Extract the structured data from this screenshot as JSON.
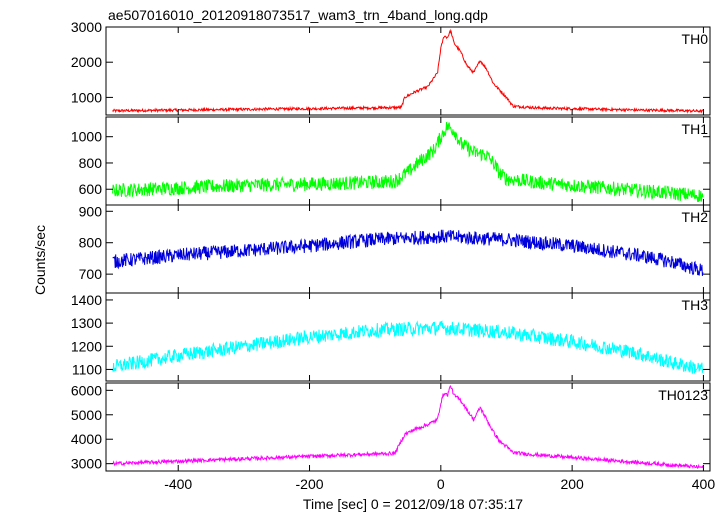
{
  "chart_data": {
    "type": "line",
    "title": "ae507016010_20120918073517_wam3_trn_4band_long.qdp",
    "xlabel": "Time [sec] 0 = 2012/09/18 07:35:17",
    "ylabel": "Counts/sec",
    "xlim": [
      -510,
      410
    ],
    "x_ticks": [
      -400,
      -200,
      0,
      200,
      400
    ],
    "grid": false,
    "panels": [
      {
        "name": "TH0",
        "color": "#ff0000",
        "ylim": [
          500,
          3000
        ],
        "y_ticks": [
          1000,
          2000,
          3000
        ],
        "x": [
          -500,
          -400,
          -300,
          -200,
          -120,
          -70,
          -60,
          -55,
          -40,
          -20,
          -5,
          0,
          5,
          10,
          15,
          20,
          30,
          40,
          50,
          60,
          70,
          80,
          90,
          100,
          110,
          150,
          200,
          250,
          300,
          350,
          400
        ],
        "values": [
          620,
          640,
          660,
          680,
          700,
          710,
          720,
          1000,
          1150,
          1300,
          1700,
          2400,
          2750,
          2700,
          2900,
          2550,
          2300,
          1900,
          1700,
          2050,
          1800,
          1400,
          1200,
          1000,
          750,
          700,
          680,
          660,
          640,
          630,
          610
        ]
      },
      {
        "name": "TH1",
        "color": "#00ff00",
        "ylim": [
          480,
          1150
        ],
        "y_ticks": [
          600,
          800,
          1000
        ],
        "x": [
          -500,
          -400,
          -300,
          -200,
          -120,
          -70,
          -50,
          -30,
          -10,
          0,
          10,
          20,
          30,
          50,
          70,
          80,
          90,
          100,
          150,
          200,
          250,
          300,
          350,
          400
        ],
        "values": [
          590,
          610,
          630,
          640,
          650,
          660,
          730,
          820,
          900,
          1000,
          1080,
          1050,
          950,
          880,
          860,
          800,
          720,
          680,
          650,
          630,
          610,
          590,
          570,
          550
        ]
      },
      {
        "name": "TH2",
        "color": "#0000dd",
        "ylim": [
          640,
          920
        ],
        "y_ticks": [
          700,
          800,
          900
        ],
        "x": [
          -500,
          -400,
          -300,
          -200,
          -100,
          0,
          100,
          200,
          300,
          350,
          400
        ],
        "values": [
          740,
          760,
          775,
          790,
          810,
          820,
          810,
          790,
          760,
          740,
          710
        ]
      },
      {
        "name": "TH3",
        "color": "#00ffff",
        "ylim": [
          1050,
          1430
        ],
        "y_ticks": [
          1100,
          1200,
          1300,
          1400
        ],
        "x": [
          -500,
          -400,
          -300,
          -200,
          -100,
          0,
          100,
          200,
          300,
          350,
          400
        ],
        "values": [
          1110,
          1160,
          1200,
          1240,
          1270,
          1280,
          1260,
          1220,
          1170,
          1130,
          1100
        ]
      },
      {
        "name": "TH0123",
        "color": "#ff00ff",
        "ylim": [
          2700,
          6300
        ],
        "y_ticks": [
          3000,
          4000,
          5000,
          6000
        ],
        "x": [
          -500,
          -400,
          -300,
          -200,
          -120,
          -70,
          -55,
          -40,
          -20,
          -5,
          0,
          5,
          10,
          15,
          20,
          30,
          40,
          50,
          60,
          70,
          80,
          90,
          100,
          110,
          150,
          200,
          250,
          300,
          350,
          400
        ],
        "values": [
          3000,
          3100,
          3200,
          3300,
          3380,
          3420,
          4200,
          4400,
          4600,
          4800,
          5500,
          5900,
          5800,
          6200,
          5800,
          5600,
          5200,
          4800,
          5300,
          4800,
          4300,
          3900,
          3700,
          3450,
          3350,
          3250,
          3150,
          3050,
          2950,
          2850
        ]
      }
    ]
  }
}
